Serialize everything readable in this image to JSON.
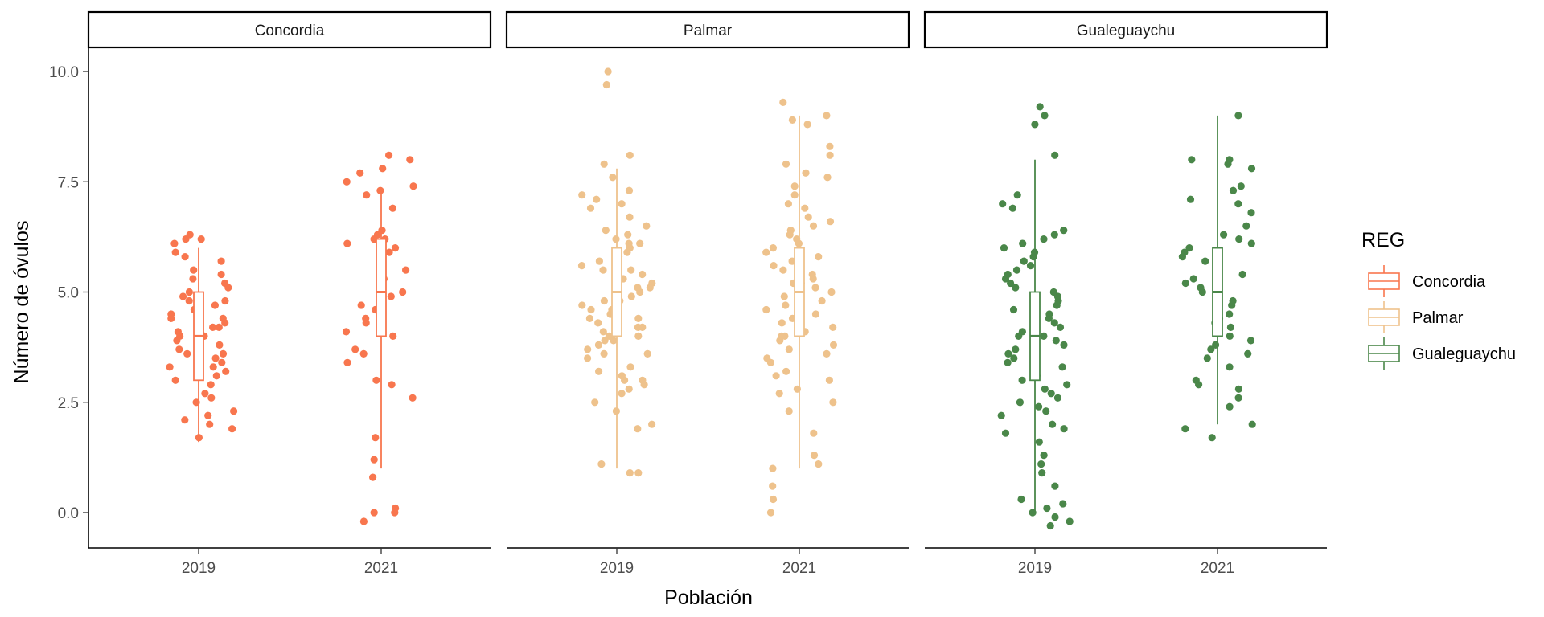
{
  "chart_data": {
    "type": "box-jitter",
    "title": "",
    "xlabel": "Población",
    "ylabel": "Número de óvulos",
    "ylim": [
      -0.8,
      11.0
    ],
    "yticks": [
      0.0,
      2.5,
      5.0,
      7.5,
      10.0
    ],
    "ytick_labels": [
      "0.0",
      "2.5",
      "5.0",
      "7.5",
      "10.0"
    ],
    "categories": [
      "2019",
      "2021"
    ],
    "legend": {
      "title": "REG",
      "position": "right",
      "entries": [
        "Concordia",
        "Palmar",
        "Gualeguaychu"
      ]
    },
    "panels": [
      {
        "name": "Concordia",
        "color": "#F8764E",
        "boxes": [
          {
            "year": "2019",
            "min": 1.6,
            "q1": 3.0,
            "median": 4.0,
            "q3": 5.0,
            "max": 6.0,
            "points": [
              2.0,
              2.1,
              2.2,
              2.3,
              2.6,
              2.9,
              3.0,
              3.2,
              3.3,
              3.4,
              3.5,
              3.6,
              3.8,
              3.9,
              4.0,
              4.0,
              4.1,
              4.2,
              4.3,
              4.4,
              4.5,
              4.6,
              4.7,
              4.8,
              4.9,
              5.0,
              5.1,
              5.2,
              5.3,
              5.5,
              5.7,
              5.9,
              6.1,
              6.2,
              6.3,
              1.7,
              1.9,
              2.5,
              3.1,
              3.7,
              4.6,
              4.8,
              5.4,
              5.8,
              6.2,
              3.6,
              4.2,
              4.4,
              2.7,
              3.3
            ]
          },
          {
            "year": "2021",
            "min": 1.0,
            "q1": 4.0,
            "median": 5.0,
            "q3": 6.2,
            "max": 7.3,
            "points": [
              0.0,
              0.0,
              0.1,
              -0.2,
              0.8,
              1.2,
              1.7,
              2.6,
              3.0,
              3.4,
              3.6,
              3.7,
              4.0,
              4.1,
              4.3,
              4.4,
              4.6,
              4.7,
              5.0,
              5.2,
              5.3,
              5.5,
              5.9,
              6.0,
              6.1,
              6.2,
              6.3,
              6.4,
              6.9,
              7.2,
              7.3,
              7.4,
              7.7,
              7.8,
              8.0,
              8.1,
              7.5,
              4.9,
              2.9,
              6.2
            ]
          }
        ]
      },
      {
        "name": "Palmar",
        "color": "#EEC28C",
        "boxes": [
          {
            "year": "2019",
            "min": 1.0,
            "q1": 4.0,
            "median": 5.0,
            "q3": 6.0,
            "max": 7.8,
            "points": [
              0.9,
              0.9,
              1.1,
              1.9,
              2.0,
              2.3,
              2.5,
              2.7,
              2.8,
              3.0,
              3.1,
              3.3,
              3.5,
              3.6,
              3.7,
              3.8,
              3.9,
              4.0,
              4.1,
              4.2,
              4.3,
              4.4,
              4.5,
              4.6,
              4.7,
              4.8,
              4.9,
              5.0,
              5.1,
              5.2,
              5.3,
              5.4,
              5.5,
              5.6,
              5.7,
              5.8,
              5.9,
              6.0,
              6.1,
              6.2,
              6.3,
              6.5,
              6.7,
              6.9,
              7.0,
              7.1,
              7.3,
              7.6,
              7.9,
              8.1,
              9.7,
              10.0,
              3.2,
              3.9,
              4.4,
              4.8,
              5.1,
              5.5,
              5.9,
              6.1,
              4.2,
              3.6,
              5.3,
              5.7,
              4.6,
              2.9,
              6.4,
              7.2,
              3.0,
              4.0
            ]
          },
          {
            "year": "2021",
            "min": 1.0,
            "q1": 4.0,
            "median": 5.0,
            "q3": 6.0,
            "max": 9.0,
            "points": [
              0.0,
              0.3,
              0.6,
              1.0,
              1.1,
              1.3,
              1.8,
              2.3,
              2.7,
              2.8,
              3.0,
              3.2,
              3.4,
              3.6,
              3.7,
              3.8,
              3.9,
              4.0,
              4.1,
              4.2,
              4.3,
              4.5,
              4.7,
              4.8,
              4.9,
              5.0,
              5.1,
              5.2,
              5.3,
              5.4,
              5.5,
              5.6,
              5.8,
              5.9,
              6.0,
              6.1,
              6.2,
              6.3,
              6.5,
              6.7,
              6.9,
              7.0,
              7.2,
              7.4,
              7.7,
              7.9,
              8.1,
              8.3,
              8.8,
              8.9,
              9.0,
              9.3,
              3.5,
              4.4,
              5.7,
              6.6,
              2.5,
              4.6,
              5.2,
              6.4,
              3.1,
              7.6,
              4.0,
              5.0
            ]
          }
        ]
      },
      {
        "name": "Gualeguaychu",
        "color": "#4A8749",
        "boxes": [
          {
            "year": "2019",
            "min": 0.0,
            "q1": 3.0,
            "median": 4.0,
            "q3": 5.0,
            "max": 8.0,
            "points": [
              -0.3,
              -0.2,
              -0.1,
              0.0,
              0.1,
              0.2,
              0.3,
              0.6,
              0.9,
              1.3,
              1.6,
              1.8,
              1.9,
              2.0,
              2.2,
              2.3,
              2.5,
              2.6,
              2.7,
              2.9,
              3.1,
              3.3,
              3.5,
              3.6,
              3.7,
              3.8,
              3.9,
              4.0,
              4.1,
              4.2,
              4.3,
              4.4,
              4.5,
              4.6,
              4.8,
              4.9,
              5.0,
              5.1,
              5.2,
              5.3,
              5.5,
              5.7,
              5.8,
              5.9,
              6.0,
              6.1,
              6.2,
              6.4,
              6.9,
              7.0,
              7.2,
              8.1,
              8.8,
              9.0,
              9.2,
              3.4,
              4.7,
              5.6,
              2.8,
              4.0,
              3.0,
              5.4,
              1.1,
              2.4,
              6.3
            ]
          },
          {
            "year": "2021",
            "min": 2.0,
            "q1": 4.0,
            "median": 5.0,
            "q3": 6.0,
            "max": 9.0,
            "points": [
              1.7,
              1.9,
              2.0,
              2.6,
              2.8,
              2.9,
              3.0,
              3.3,
              3.6,
              3.7,
              3.8,
              3.9,
              4.0,
              4.1,
              4.2,
              4.4,
              4.6,
              4.7,
              4.8,
              5.0,
              5.1,
              5.2,
              5.3,
              5.4,
              5.6,
              5.7,
              5.8,
              6.0,
              6.1,
              6.2,
              6.3,
              6.8,
              7.0,
              7.3,
              7.4,
              7.8,
              7.9,
              8.0,
              8.0,
              9.0,
              3.5,
              4.5,
              5.5,
              6.5,
              4.3,
              5.9,
              2.4,
              7.1
            ]
          }
        ]
      }
    ]
  }
}
